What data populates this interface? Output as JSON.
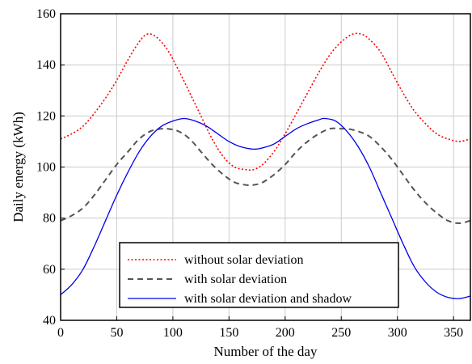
{
  "chart_data": {
    "type": "line",
    "xlabel": "Number of the day",
    "ylabel": "Daily energy (kWh)",
    "xlim": [
      0,
      365
    ],
    "ylim": [
      40,
      160
    ],
    "xticks": [
      0,
      50,
      100,
      150,
      200,
      250,
      300,
      350
    ],
    "yticks": [
      40,
      60,
      80,
      100,
      120,
      140,
      160
    ],
    "grid": true,
    "legend_position": "bottom-center",
    "series": [
      {
        "name": "without solar deviation",
        "color": "#ff0000",
        "style": "dotted",
        "x": [
          0,
          10,
          20,
          30,
          40,
          50,
          60,
          70,
          77,
          85,
          95,
          105,
          115,
          125,
          135,
          145,
          155,
          165,
          172,
          180,
          190,
          200,
          210,
          220,
          230,
          240,
          250,
          260,
          268,
          275,
          285,
          295,
          305,
          315,
          325,
          335,
          345,
          355,
          365
        ],
        "y": [
          111,
          113,
          116,
          121,
          127,
          134,
          142,
          149,
          152,
          151,
          146,
          138,
          129,
          120,
          111,
          104,
          100,
          99,
          99,
          101,
          106,
          113,
          121,
          129,
          137,
          144,
          149,
          152,
          152,
          150,
          145,
          137,
          129,
          122,
          117,
          113,
          111,
          110,
          111
        ]
      },
      {
        "name": "with solar deviation",
        "color": "#555555",
        "style": "dashed",
        "x": [
          0,
          10,
          20,
          30,
          40,
          50,
          60,
          70,
          80,
          90,
          95,
          105,
          115,
          125,
          135,
          145,
          155,
          165,
          172,
          180,
          190,
          200,
          210,
          220,
          230,
          240,
          250,
          255,
          265,
          275,
          285,
          295,
          305,
          315,
          325,
          335,
          345,
          355,
          365
        ],
        "y": [
          79,
          81,
          84,
          89,
          95,
          101,
          106,
          111,
          114,
          115,
          115,
          114,
          111,
          106,
          101,
          97,
          94,
          93,
          93,
          94,
          97,
          101,
          106,
          110,
          113,
          115,
          115,
          115,
          114,
          112,
          108,
          103,
          97,
          91,
          86,
          82,
          79,
          78,
          79
        ]
      },
      {
        "name": "with solar deviation and shadow",
        "color": "#0000ee",
        "style": "solid",
        "x": [
          0,
          10,
          20,
          30,
          40,
          50,
          60,
          70,
          80,
          90,
          100,
          110,
          120,
          130,
          140,
          150,
          160,
          172,
          180,
          190,
          200,
          210,
          220,
          230,
          235,
          245,
          255,
          265,
          275,
          285,
          295,
          305,
          315,
          325,
          335,
          345,
          355,
          365
        ],
        "y": [
          50,
          54,
          60,
          69,
          79,
          89,
          98,
          106,
          112,
          116,
          118,
          119,
          118,
          116,
          113,
          110,
          108,
          107,
          107.5,
          109,
          112,
          115,
          117,
          118.5,
          119,
          118,
          114,
          108,
          100,
          90,
          80,
          70,
          61,
          55,
          51,
          49,
          48.5,
          49.5
        ]
      }
    ]
  }
}
